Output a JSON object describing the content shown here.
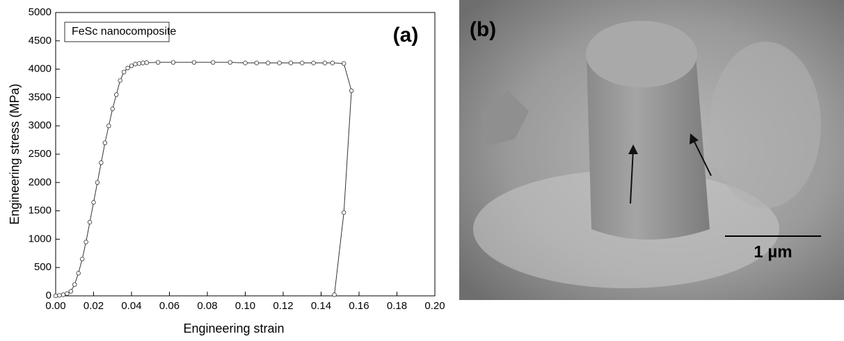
{
  "chart_data": {
    "type": "line",
    "x_label": "Engineering strain",
    "y_label": "Engineering stress (MPa)",
    "annotation": "(a)",
    "x": [
      0,
      0.002,
      0.004,
      0.006,
      0.008,
      0.01,
      0.012,
      0.014,
      0.016,
      0.018,
      0.02,
      0.022,
      0.024,
      0.026,
      0.028,
      0.03,
      0.032,
      0.034,
      0.036,
      0.038,
      0.04,
      0.042,
      0.044,
      0.046,
      0.048,
      0.054,
      0.062,
      0.073,
      0.083,
      0.092,
      0.1,
      0.106,
      0.112,
      0.118,
      0.124,
      0.13,
      0.136,
      0.142,
      0.146,
      0.152,
      0.156,
      0.152,
      0.147
    ],
    "series": [
      {
        "name": "FeSc nanocomposite",
        "color": "#333333",
        "values": [
          0,
          10,
          20,
          40,
          80,
          200,
          400,
          650,
          950,
          1300,
          1650,
          2000,
          2350,
          2700,
          3000,
          3300,
          3550,
          3800,
          3950,
          4020,
          4060,
          4090,
          4100,
          4110,
          4115,
          4120,
          4120,
          4120,
          4120,
          4120,
          4110,
          4110,
          4110,
          4110,
          4110,
          4110,
          4110,
          4110,
          4110,
          4100,
          3620,
          1470,
          20
        ]
      }
    ],
    "xlim": [
      0,
      0.2
    ],
    "ylim": [
      0,
      5000
    ],
    "xticks": [
      {
        "value": 0,
        "label": "0.00"
      },
      {
        "value": 0.02,
        "label": "0.02"
      },
      {
        "value": 0.04,
        "label": "0.04"
      },
      {
        "value": 0.06,
        "label": "0.06"
      },
      {
        "value": 0.08,
        "label": "0.08"
      },
      {
        "value": 0.1,
        "label": "0.10"
      },
      {
        "value": 0.12,
        "label": "0.12"
      },
      {
        "value": 0.14,
        "label": "0.14"
      },
      {
        "value": 0.16,
        "label": "0.16"
      },
      {
        "value": 0.18,
        "label": "0.18"
      },
      {
        "value": 0.2,
        "label": "0.20"
      }
    ],
    "yticks": [
      0,
      500,
      1000,
      1500,
      2000,
      2500,
      3000,
      3500,
      4000,
      4500,
      5000
    ],
    "legend": "upper left",
    "grid": false
  },
  "image": {
    "label": "(b)",
    "scale_bar": "1 µm"
  }
}
